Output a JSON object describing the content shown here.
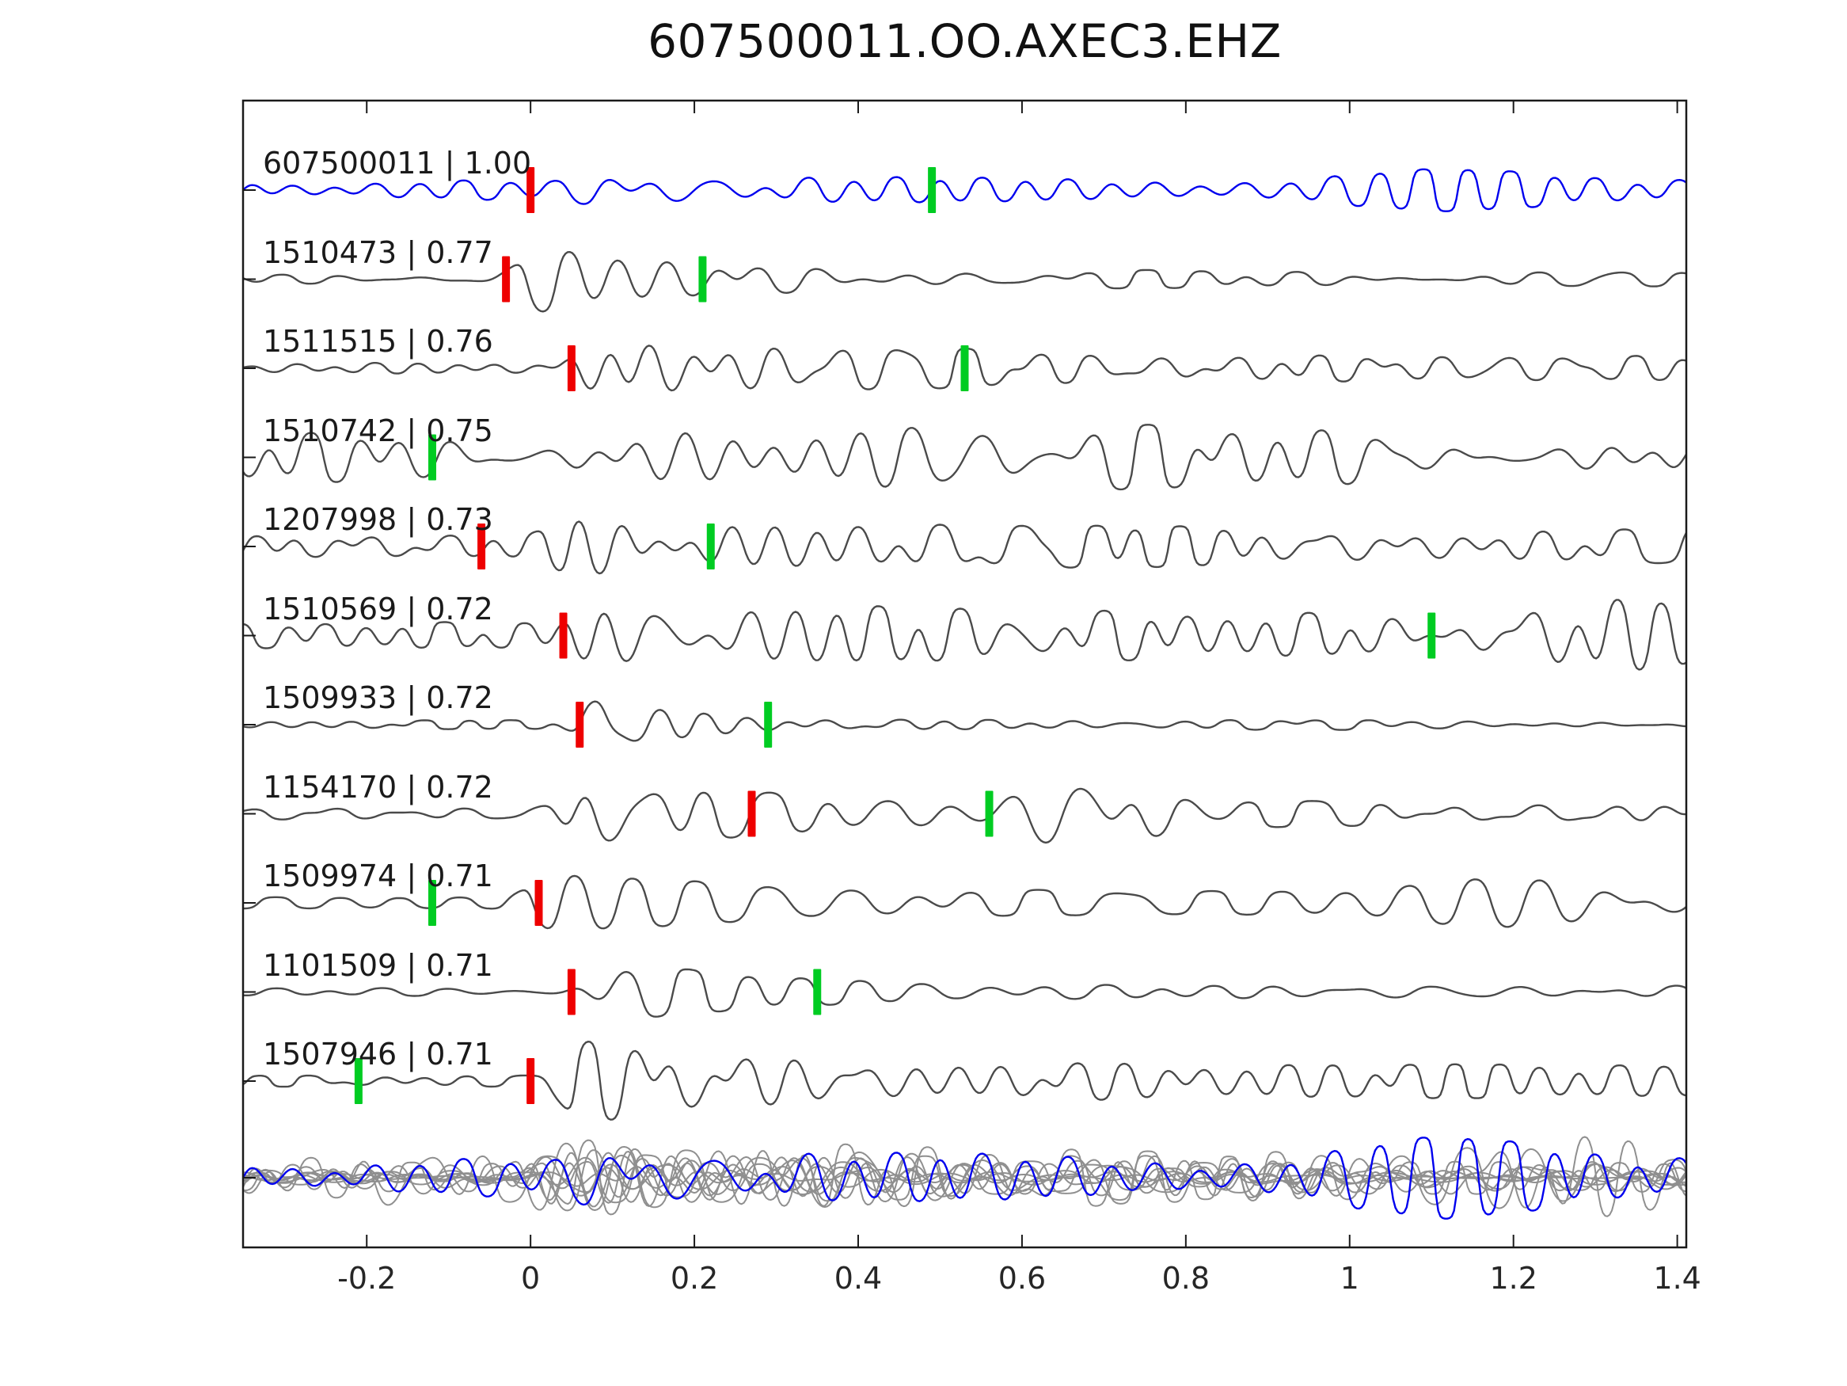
{
  "title": "607500011.OO.AXEC3.EHZ",
  "chart_data": {
    "type": "line",
    "title": "607500011.OO.AXEC3.EHZ",
    "description": "Template-matching waveform comparison: template trace (blue) with matched event traces (gray), red/green pick markers, and all traces overlaid at bottom.",
    "x_range": [
      -0.351,
      1.411
    ],
    "x_ticks": [
      -0.2,
      0,
      0.2,
      0.4,
      0.6,
      0.8,
      1,
      1.2,
      1.4
    ],
    "x_tick_labels": [
      "-0.2",
      "0",
      "0.2",
      "0.4",
      "0.6",
      "0.8",
      "1",
      "1.2",
      "1.4"
    ],
    "grid": false,
    "legend": false,
    "colors": {
      "template": "#0000ee",
      "trace": "#4a4a4a",
      "overlay": "#8f8f8f",
      "pick_red": "#ee0000",
      "pick_green": "#00cc22",
      "axis": "#1a1a1a",
      "text": "#1a1a1a"
    },
    "traces": [
      {
        "label": "607500011 | 1.00",
        "event_id": "607500011",
        "correlation": 1.0,
        "is_template": true,
        "picks": {
          "red": 0.0,
          "green": 0.49
        },
        "seed": 11,
        "env": {
          "pre": 0.5,
          "onset": 0.06,
          "peak": 1.0,
          "decay": 0.3,
          "coda": 0.55,
          "amp": 30
        },
        "bursts": [
          {
            "t": 1.12,
            "a": 0.35,
            "w": 0.1
          }
        ]
      },
      {
        "label": "1510473 | 0.77",
        "event_id": "1510473",
        "correlation": 0.77,
        "is_template": false,
        "picks": {
          "red": -0.03,
          "green": 0.21
        },
        "seed": 22,
        "env": {
          "pre": 0.12,
          "onset": -0.01,
          "peak": 1.0,
          "decay": 0.22,
          "coda": 0.18,
          "amp": 58
        },
        "bursts": []
      },
      {
        "label": "1511515 | 0.76",
        "event_id": "1511515",
        "correlation": 0.76,
        "is_template": false,
        "picks": {
          "red": 0.05,
          "green": 0.53
        },
        "seed": 33,
        "env": {
          "pre": 0.15,
          "onset": 0.05,
          "peak": 1.0,
          "decay": 0.3,
          "coda": 0.28,
          "amp": 60
        },
        "bursts": []
      },
      {
        "label": "1510742 | 0.75",
        "event_id": "1510742",
        "correlation": 0.75,
        "is_template": false,
        "picks": {
          "red": null,
          "green": -0.12
        },
        "seed": 44,
        "env": {
          "pre": 0.55,
          "onset": 0.05,
          "peak": 1.0,
          "decay": 0.5,
          "coda": 0.55,
          "amp": 64
        },
        "bursts": []
      },
      {
        "label": "1207998 | 0.73",
        "event_id": "1207998",
        "correlation": 0.73,
        "is_template": false,
        "picks": {
          "red": -0.06,
          "green": 0.22
        },
        "seed": 55,
        "env": {
          "pre": 0.3,
          "onset": 0.03,
          "peak": 1.0,
          "decay": 0.35,
          "coda": 0.4,
          "amp": 56
        },
        "bursts": []
      },
      {
        "label": "1510569 | 0.72",
        "event_id": "1510569",
        "correlation": 0.72,
        "is_template": false,
        "picks": {
          "red": 0.04,
          "green": 1.1
        },
        "seed": 66,
        "env": {
          "pre": 0.3,
          "onset": 0.05,
          "peak": 1.0,
          "decay": 0.45,
          "coda": 0.45,
          "amp": 58
        },
        "bursts": [
          {
            "t": 1.3,
            "a": 0.5,
            "w": 0.1
          }
        ]
      },
      {
        "label": "1509933 | 0.72",
        "event_id": "1509933",
        "correlation": 0.72,
        "is_template": false,
        "picks": {
          "red": 0.06,
          "green": 0.29
        },
        "seed": 77,
        "env": {
          "pre": 0.1,
          "onset": 0.07,
          "peak": 1.0,
          "decay": 0.1,
          "coda": 0.12,
          "amp": 58
        },
        "bursts": []
      },
      {
        "label": "1154170 | 0.72",
        "event_id": "1154170",
        "correlation": 0.72,
        "is_template": false,
        "picks": {
          "red": 0.27,
          "green": 0.56
        },
        "seed": 88,
        "env": {
          "pre": 0.15,
          "onset": 0.04,
          "peak": 1.0,
          "decay": 0.22,
          "coda": 0.28,
          "amp": 58
        },
        "bursts": [
          {
            "t": 0.68,
            "a": 0.8,
            "w": 0.07
          }
        ]
      },
      {
        "label": "1509974 | 0.71",
        "event_id": "1509974",
        "correlation": 0.71,
        "is_template": false,
        "picks": {
          "red": 0.01,
          "green": -0.12
        },
        "seed": 99,
        "env": {
          "pre": 0.15,
          "onset": 0.0,
          "peak": 1.0,
          "decay": 0.22,
          "coda": 0.28,
          "amp": 52
        },
        "bursts": [
          {
            "t": 1.2,
            "a": 0.45,
            "w": 0.12
          }
        ]
      },
      {
        "label": "1101509 | 0.71",
        "event_id": "1101509",
        "correlation": 0.71,
        "is_template": false,
        "picks": {
          "red": 0.05,
          "green": 0.35
        },
        "seed": 110,
        "env": {
          "pre": 0.12,
          "onset": 0.05,
          "peak": 1.0,
          "decay": 0.18,
          "coda": 0.2,
          "amp": 52
        },
        "bursts": []
      },
      {
        "label": "1507946 | 0.71",
        "event_id": "1507946",
        "correlation": 0.71,
        "is_template": false,
        "picks": {
          "red": 0.0,
          "green": -0.21
        },
        "seed": 121,
        "env": {
          "pre": 0.12,
          "onset": 0.04,
          "peak": 1.0,
          "decay": 0.35,
          "coda": 0.33,
          "amp": 62
        },
        "bursts": []
      }
    ],
    "overlay": {
      "includes_template": true,
      "amp": 58
    }
  }
}
